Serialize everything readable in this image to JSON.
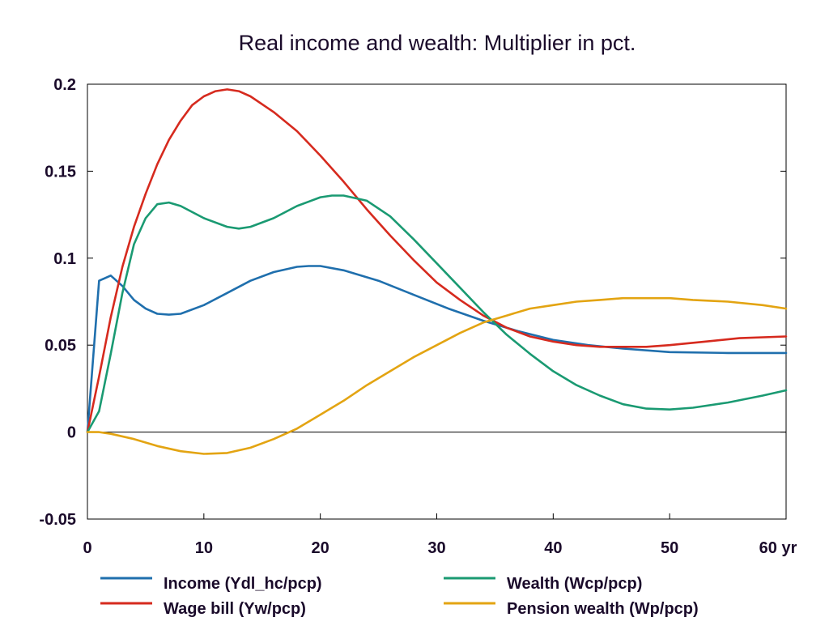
{
  "chart_data": {
    "type": "line",
    "title": "Real income and wealth: Multiplier in pct.",
    "x_unit_label": "yr",
    "xlim": [
      0,
      60
    ],
    "ylim": [
      -0.05,
      0.2
    ],
    "x_ticks": [
      0,
      10,
      20,
      30,
      40,
      50,
      60
    ],
    "x_tick_labels": [
      "0",
      "10",
      "20",
      "30",
      "40",
      "50",
      "60 yr"
    ],
    "y_ticks": [
      -0.05,
      0,
      0.05,
      0.1,
      0.15,
      0.2
    ],
    "y_tick_labels": [
      "-0.05",
      "0",
      "0.05",
      "0.1",
      "0.15",
      "0.2"
    ],
    "grid": false,
    "zero_line": true,
    "legend_position": "bottom",
    "series": [
      {
        "name": "Income (Ydl_hc/pcp)",
        "color": "#1f6fad",
        "points": [
          [
            0,
            0
          ],
          [
            1,
            0.087
          ],
          [
            2,
            0.09
          ],
          [
            3,
            0.084
          ],
          [
            4,
            0.076
          ],
          [
            5,
            0.071
          ],
          [
            6,
            0.068
          ],
          [
            7,
            0.0675
          ],
          [
            8,
            0.068
          ],
          [
            10,
            0.073
          ],
          [
            12,
            0.08
          ],
          [
            14,
            0.087
          ],
          [
            16,
            0.092
          ],
          [
            18,
            0.095
          ],
          [
            19,
            0.0955
          ],
          [
            20,
            0.0955
          ],
          [
            22,
            0.093
          ],
          [
            25,
            0.087
          ],
          [
            28,
            0.079
          ],
          [
            31,
            0.071
          ],
          [
            34,
            0.064
          ],
          [
            37,
            0.058
          ],
          [
            40,
            0.053
          ],
          [
            43,
            0.05
          ],
          [
            46,
            0.048
          ],
          [
            50,
            0.046
          ],
          [
            55,
            0.0455
          ],
          [
            60,
            0.0455
          ]
        ]
      },
      {
        "name": "Wage bill (Yw/pcp)",
        "color": "#d62a1e",
        "points": [
          [
            0,
            0
          ],
          [
            1,
            0.032
          ],
          [
            2,
            0.066
          ],
          [
            3,
            0.095
          ],
          [
            4,
            0.118
          ],
          [
            5,
            0.137
          ],
          [
            6,
            0.154
          ],
          [
            7,
            0.168
          ],
          [
            8,
            0.179
          ],
          [
            9,
            0.188
          ],
          [
            10,
            0.193
          ],
          [
            11,
            0.196
          ],
          [
            12,
            0.197
          ],
          [
            13,
            0.196
          ],
          [
            14,
            0.193
          ],
          [
            16,
            0.184
          ],
          [
            18,
            0.173
          ],
          [
            20,
            0.159
          ],
          [
            22,
            0.144
          ],
          [
            24,
            0.128
          ],
          [
            26,
            0.113
          ],
          [
            28,
            0.099
          ],
          [
            30,
            0.086
          ],
          [
            32,
            0.076
          ],
          [
            34,
            0.067
          ],
          [
            36,
            0.06
          ],
          [
            38,
            0.055
          ],
          [
            40,
            0.052
          ],
          [
            42,
            0.05
          ],
          [
            44,
            0.049
          ],
          [
            46,
            0.049
          ],
          [
            48,
            0.049
          ],
          [
            50,
            0.05
          ],
          [
            53,
            0.052
          ],
          [
            56,
            0.054
          ],
          [
            60,
            0.055
          ]
        ]
      },
      {
        "name": "Wealth (Wcp/pcp)",
        "color": "#1a9a72",
        "points": [
          [
            0,
            0
          ],
          [
            1,
            0.012
          ],
          [
            2,
            0.045
          ],
          [
            3,
            0.08
          ],
          [
            4,
            0.108
          ],
          [
            5,
            0.123
          ],
          [
            6,
            0.131
          ],
          [
            7,
            0.132
          ],
          [
            8,
            0.13
          ],
          [
            10,
            0.123
          ],
          [
            12,
            0.118
          ],
          [
            13,
            0.117
          ],
          [
            14,
            0.118
          ],
          [
            16,
            0.123
          ],
          [
            18,
            0.13
          ],
          [
            20,
            0.135
          ],
          [
            21,
            0.136
          ],
          [
            22,
            0.136
          ],
          [
            24,
            0.133
          ],
          [
            26,
            0.124
          ],
          [
            28,
            0.111
          ],
          [
            30,
            0.097
          ],
          [
            32,
            0.083
          ],
          [
            34,
            0.069
          ],
          [
            36,
            0.056
          ],
          [
            38,
            0.045
          ],
          [
            40,
            0.035
          ],
          [
            42,
            0.027
          ],
          [
            44,
            0.021
          ],
          [
            46,
            0.016
          ],
          [
            48,
            0.0135
          ],
          [
            50,
            0.013
          ],
          [
            52,
            0.014
          ],
          [
            55,
            0.017
          ],
          [
            58,
            0.021
          ],
          [
            60,
            0.024
          ]
        ]
      },
      {
        "name": "Pension wealth (Wp/pcp)",
        "color": "#e3a412",
        "points": [
          [
            0,
            0
          ],
          [
            1,
            0
          ],
          [
            2,
            -0.001
          ],
          [
            4,
            -0.004
          ],
          [
            6,
            -0.008
          ],
          [
            8,
            -0.011
          ],
          [
            10,
            -0.0125
          ],
          [
            12,
            -0.012
          ],
          [
            14,
            -0.009
          ],
          [
            16,
            -0.004
          ],
          [
            18,
            0.002
          ],
          [
            20,
            0.01
          ],
          [
            22,
            0.018
          ],
          [
            24,
            0.027
          ],
          [
            26,
            0.035
          ],
          [
            28,
            0.043
          ],
          [
            30,
            0.05
          ],
          [
            32,
            0.057
          ],
          [
            34,
            0.063
          ],
          [
            36,
            0.067
          ],
          [
            38,
            0.071
          ],
          [
            40,
            0.073
          ],
          [
            42,
            0.075
          ],
          [
            44,
            0.076
          ],
          [
            46,
            0.077
          ],
          [
            48,
            0.077
          ],
          [
            50,
            0.077
          ],
          [
            52,
            0.076
          ],
          [
            55,
            0.075
          ],
          [
            58,
            0.073
          ],
          [
            60,
            0.071
          ]
        ]
      }
    ]
  }
}
